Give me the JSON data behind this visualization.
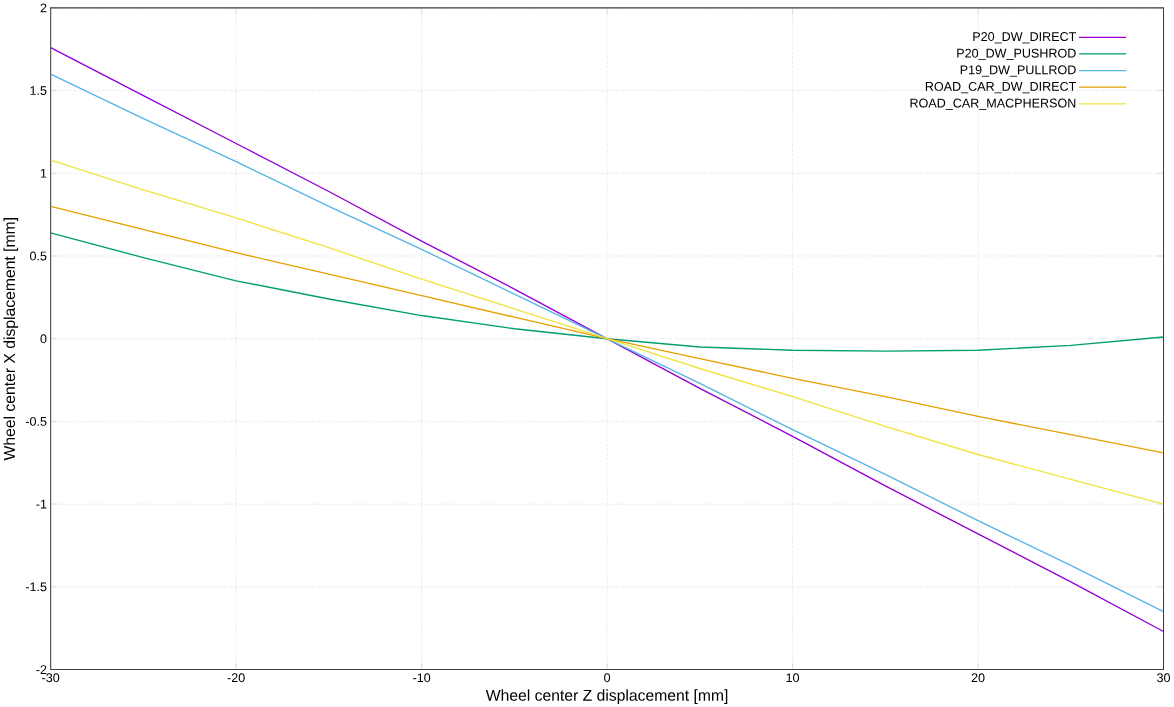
{
  "chart_data": {
    "type": "line",
    "xlabel": "Wheel center Z displacement [mm]",
    "ylabel": "Wheel center X displacement [mm]",
    "xlim": [
      -30,
      30
    ],
    "ylim": [
      -2,
      2
    ],
    "xticks": [
      -30,
      -20,
      -10,
      0,
      10,
      20,
      30
    ],
    "yticks": [
      -2,
      -1.5,
      -1,
      -0.5,
      0,
      0.5,
      1,
      1.5,
      2
    ],
    "grid": true,
    "legend": "top right",
    "marker": "none",
    "line_style": "solid",
    "x": [
      -30,
      -25,
      -20,
      -15,
      -10,
      -5,
      0,
      5,
      10,
      15,
      20,
      25,
      30
    ],
    "series": [
      {
        "name": "P20_DW_DIRECT",
        "color": "#9400d3",
        "values": [
          1.76,
          1.47,
          1.18,
          0.89,
          0.59,
          0.3,
          0,
          -0.3,
          -0.59,
          -0.89,
          -1.18,
          -1.47,
          -1.77
        ]
      },
      {
        "name": "P20_DW_PUSHROD",
        "color": "#009e73",
        "values": [
          0.64,
          0.49,
          0.35,
          0.24,
          0.14,
          0.06,
          0,
          -0.05,
          -0.07,
          -0.075,
          -0.07,
          -0.04,
          0.01
        ]
      },
      {
        "name": "P19_DW_PULLROD",
        "color": "#56b4e9",
        "values": [
          1.6,
          1.33,
          1.07,
          0.8,
          0.54,
          0.27,
          0,
          -0.27,
          -0.55,
          -0.82,
          -1.1,
          -1.37,
          -1.65
        ]
      },
      {
        "name": "ROAD_CAR_DW_DIRECT",
        "color": "#e69f00",
        "values": [
          0.8,
          0.66,
          0.52,
          0.39,
          0.26,
          0.13,
          0,
          -0.12,
          -0.24,
          -0.35,
          -0.47,
          -0.58,
          -0.69
        ]
      },
      {
        "name": "ROAD_CAR_MACPHERSON",
        "color": "#f0e442",
        "values": [
          1.08,
          0.9,
          0.73,
          0.55,
          0.36,
          0.18,
          0,
          -0.18,
          -0.35,
          -0.53,
          -0.7,
          -0.85,
          -1.0
        ]
      }
    ]
  }
}
